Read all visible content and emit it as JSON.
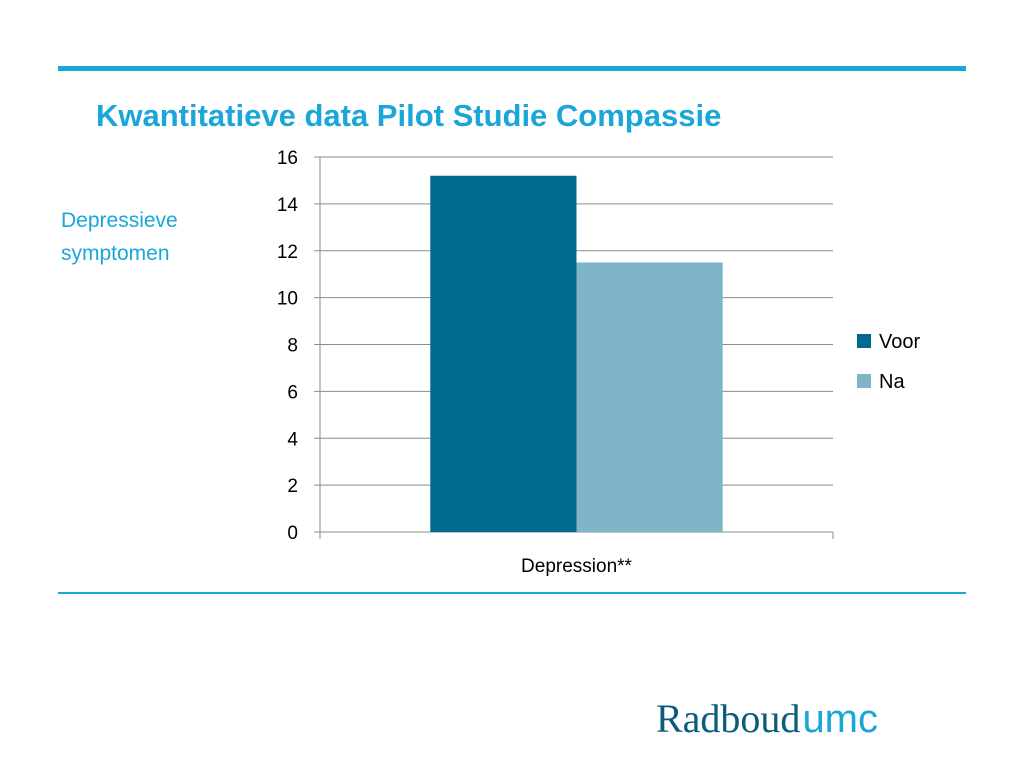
{
  "slide": {
    "title": "Kwantitatieve data Pilot Studie Compassie",
    "side_label_line1": "Depressieve",
    "side_label_line2": "symptomen"
  },
  "logo": {
    "part1": "Radboud",
    "part2": "umc"
  },
  "colors": {
    "accent": "#1aa6d8",
    "voor": "#006a8e",
    "na": "#7fb4c9",
    "logo_dark": "#0a5b7c"
  },
  "chart_data": {
    "type": "bar",
    "categories": [
      "Depression**"
    ],
    "series": [
      {
        "name": "Voor",
        "values": [
          15.2
        ],
        "color": "#006a8e"
      },
      {
        "name": "Na",
        "values": [
          11.5
        ],
        "color": "#7fb4c9"
      }
    ],
    "ylim": [
      0,
      16
    ],
    "yticks": [
      "0",
      "2",
      "4",
      "6",
      "8",
      "10",
      "12",
      "14",
      "16"
    ],
    "grid": true,
    "legend": "right"
  }
}
